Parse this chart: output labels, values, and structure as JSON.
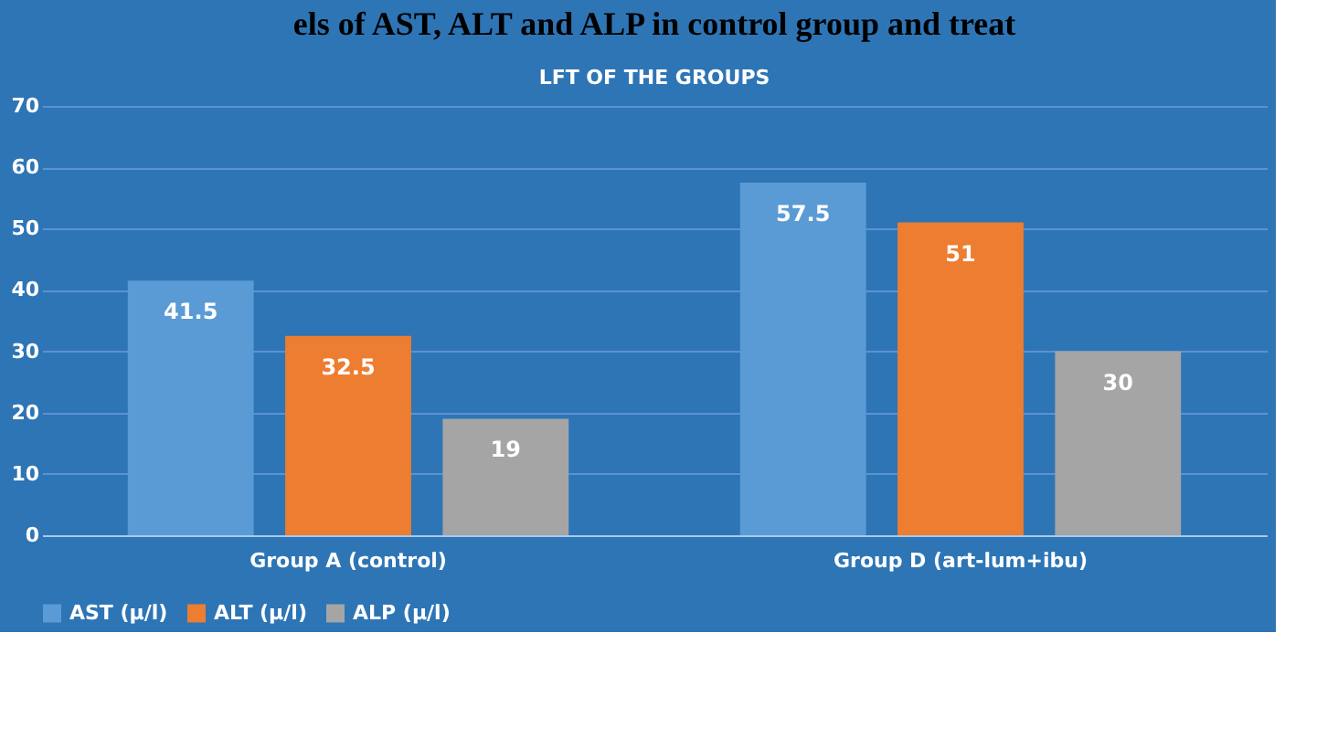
{
  "chart_data": {
    "type": "bar",
    "title": "LFT OF THE GROUPS",
    "annotations": [
      "els of AST, ALT and ALP in control group and treat"
    ],
    "categories": [
      "Group A (control)",
      "Group D (art-lum+ibu)"
    ],
    "series": [
      {
        "name": "AST (µ/l)",
        "color": "#5b9bd5",
        "values": [
          41.5,
          57.5
        ]
      },
      {
        "name": "ALT (µ/l)",
        "color": "#ed7d31",
        "values": [
          32.5,
          51
        ]
      },
      {
        "name": "ALP (µ/l)",
        "color": "#a5a5a5",
        "values": [
          19,
          30
        ]
      }
    ],
    "ylim": [
      0,
      70
    ],
    "yticks": [
      0,
      10,
      20,
      30,
      40,
      50,
      60,
      70
    ],
    "grid": "y",
    "legend": "bottom",
    "data_labels": true
  }
}
